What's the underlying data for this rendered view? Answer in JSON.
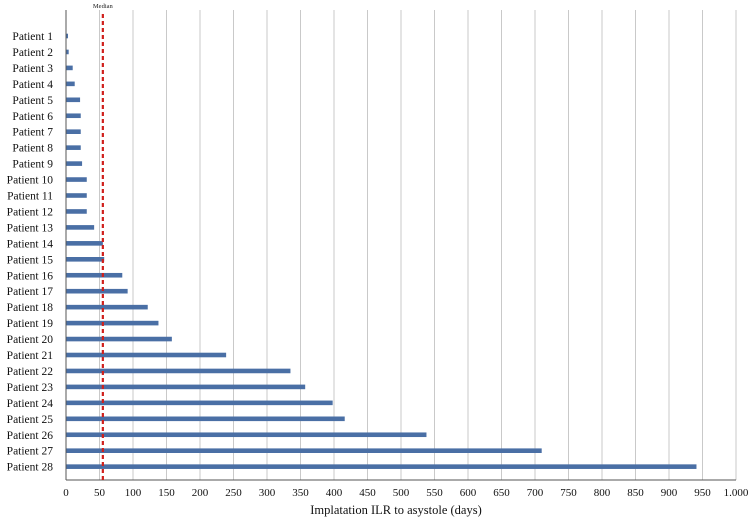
{
  "chart_data": {
    "type": "bar",
    "orientation": "horizontal",
    "categories": [
      "Patient 1",
      "Patient 2",
      "Patient 3",
      "Patient 4",
      "Patient 5",
      "Patient 6",
      "Patient 7",
      "Patient 8",
      "Patient 9",
      "Patient 10",
      "Patient 11",
      "Patient 12",
      "Patient 13",
      "Patient 14",
      "Patient 15",
      "Patient 16",
      "Patient 17",
      "Patient 18",
      "Patient 19",
      "Patient 20",
      "Patient 21",
      "Patient 22",
      "Patient 23",
      "Patient 24",
      "Patient 25",
      "Patient 26",
      "Patient 27",
      "Patient 28"
    ],
    "values": [
      3,
      4,
      10,
      13,
      21,
      22,
      22,
      22,
      24,
      31,
      31,
      31,
      42,
      55,
      57,
      84,
      92,
      122,
      138,
      158,
      239,
      335,
      357,
      398,
      416,
      538,
      710,
      941
    ],
    "title": "",
    "xlabel": "Implatation ILR to asystole (days)",
    "ylabel": "",
    "xlim": [
      0,
      1000
    ],
    "xticks": [
      "0",
      "50",
      "100",
      "150",
      "200",
      "250",
      "300",
      "350",
      "400",
      "450",
      "500",
      "550",
      "600",
      "650",
      "700",
      "750",
      "800",
      "850",
      "900",
      "950",
      "1.000"
    ],
    "grid": "vertical",
    "legend": "none",
    "bar_color": "#4a6fa5",
    "median": {
      "label": "Median",
      "value": 55,
      "color": "#d0201c"
    }
  }
}
